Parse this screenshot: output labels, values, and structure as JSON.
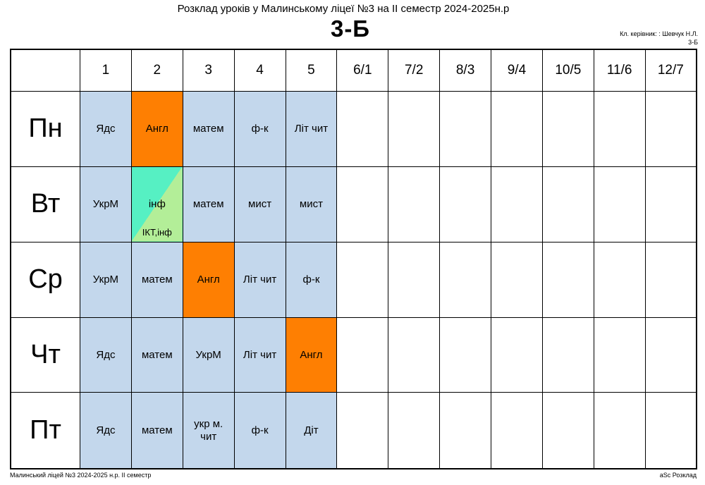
{
  "header": {
    "title": "Розклад уроків у Малинському ліцеї №3 на ІІ семестр 2024-2025н.р",
    "class_name": "3-Б",
    "teacher": "Кл. керівник: : Шевчук Н.Л.",
    "teacher_class": "3-Б"
  },
  "periods": [
    "1",
    "2",
    "3",
    "4",
    "5",
    "6/1",
    "7/2",
    "8/3",
    "9/4",
    "10/5",
    "11/6",
    "12/7"
  ],
  "days": [
    {
      "name": "Пн",
      "lessons": [
        "Ядс",
        "Англ",
        "матем",
        "ф-к",
        "Літ чит"
      ]
    },
    {
      "name": "Вт",
      "lessons": [
        "УкрМ",
        "інф",
        "матем",
        "мист",
        "мист"
      ],
      "split": {
        "index": 1,
        "top": "інф",
        "bottom": "ІКТ,інф"
      }
    },
    {
      "name": "Ср",
      "lessons": [
        "УкрМ",
        "матем",
        "Англ",
        "Літ чит",
        "ф-к"
      ]
    },
    {
      "name": "Чт",
      "lessons": [
        "Ядс",
        "матем",
        "УкрМ",
        "Літ чит",
        "Англ"
      ]
    },
    {
      "name": "Пт",
      "lessons": [
        "Ядс",
        "матем",
        "укр м. чит",
        "ф-к",
        "Діт"
      ]
    }
  ],
  "colors": {
    "default_lesson": "#c3d7ec",
    "english_lesson": "#fe7f02",
    "split_top": "#56f0c3",
    "split_bottom": "#b3ee98"
  },
  "footer": {
    "left": "Малинський ліцей №3  2024-2025 н.р. ІІ семестр",
    "right": "aSc Розклад"
  }
}
